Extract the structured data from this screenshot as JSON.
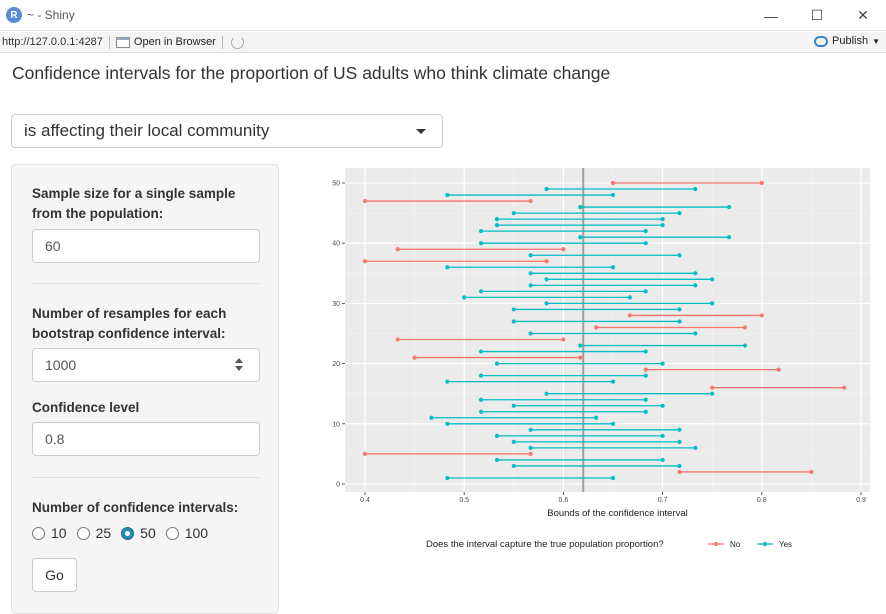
{
  "window": {
    "app_letter": "R",
    "title": "~ - Shiny",
    "controls": [
      "—",
      "☐",
      "✕"
    ]
  },
  "toolbar": {
    "url": "http://127.0.0.1:4287",
    "open_browser": "Open in Browser",
    "publish": "Publish"
  },
  "page": {
    "title": "Confidence intervals for the proportion of US adults who think climate change"
  },
  "statement_select": {
    "value": "is affecting their local community"
  },
  "sidebar": {
    "sample_size_label": "Sample size for a single sample from the population:",
    "sample_size_value": "60",
    "resamples_label": "Number of resamples for each bootstrap confidence interval:",
    "resamples_value": "1000",
    "confidence_label": "Confidence level",
    "confidence_value": "0.8",
    "num_intervals_label": "Number of confidence intervals:",
    "num_intervals_options": [
      "10",
      "25",
      "50",
      "100"
    ],
    "num_intervals_selected": "50",
    "go_label": "Go"
  },
  "chart_data": {
    "type": "interval",
    "xlabel": "Bounds of the confidence interval",
    "ylabel": "",
    "xlim": [
      0.4,
      0.9
    ],
    "ylim": [
      0,
      50
    ],
    "x_ticks": [
      0.4,
      0.5,
      0.6,
      0.7,
      0.8,
      0.9
    ],
    "x_tick_labels": [
      "0.4",
      "0.5",
      "0.6",
      "0.7",
      "0.8",
      "0.9"
    ],
    "y_ticks": [
      0,
      10,
      20,
      30,
      40,
      50
    ],
    "y_tick_labels": [
      "0",
      "10",
      "20",
      "30",
      "40",
      "50"
    ],
    "true_proportion": 0.62,
    "grid": true,
    "legend_title": "Does the interval capture the true population proportion?",
    "legend_position": "bottom",
    "series": [
      {
        "name": "No",
        "color": "#F8766D"
      },
      {
        "name": "Yes",
        "color": "#00BFC4"
      }
    ],
    "intervals": [
      {
        "id": 1,
        "lower": 0.483,
        "upper": 0.65,
        "captured": "Yes"
      },
      {
        "id": 2,
        "lower": 0.717,
        "upper": 0.85,
        "captured": "No"
      },
      {
        "id": 3,
        "lower": 0.55,
        "upper": 0.717,
        "captured": "Yes"
      },
      {
        "id": 4,
        "lower": 0.533,
        "upper": 0.7,
        "captured": "Yes"
      },
      {
        "id": 5,
        "lower": 0.4,
        "upper": 0.567,
        "captured": "No"
      },
      {
        "id": 6,
        "lower": 0.567,
        "upper": 0.733,
        "captured": "Yes"
      },
      {
        "id": 7,
        "lower": 0.55,
        "upper": 0.717,
        "captured": "Yes"
      },
      {
        "id": 8,
        "lower": 0.533,
        "upper": 0.7,
        "captured": "Yes"
      },
      {
        "id": 9,
        "lower": 0.567,
        "upper": 0.717,
        "captured": "Yes"
      },
      {
        "id": 10,
        "lower": 0.483,
        "upper": 0.65,
        "captured": "Yes"
      },
      {
        "id": 11,
        "lower": 0.467,
        "upper": 0.633,
        "captured": "Yes"
      },
      {
        "id": 12,
        "lower": 0.517,
        "upper": 0.683,
        "captured": "Yes"
      },
      {
        "id": 13,
        "lower": 0.55,
        "upper": 0.7,
        "captured": "Yes"
      },
      {
        "id": 14,
        "lower": 0.517,
        "upper": 0.683,
        "captured": "Yes"
      },
      {
        "id": 15,
        "lower": 0.583,
        "upper": 0.75,
        "captured": "Yes"
      },
      {
        "id": 16,
        "lower": 0.75,
        "upper": 0.883,
        "captured": "No"
      },
      {
        "id": 17,
        "lower": 0.483,
        "upper": 0.65,
        "captured": "Yes"
      },
      {
        "id": 18,
        "lower": 0.517,
        "upper": 0.683,
        "captured": "Yes"
      },
      {
        "id": 19,
        "lower": 0.683,
        "upper": 0.817,
        "captured": "No"
      },
      {
        "id": 20,
        "lower": 0.533,
        "upper": 0.7,
        "captured": "Yes"
      },
      {
        "id": 21,
        "lower": 0.45,
        "upper": 0.617,
        "captured": "No"
      },
      {
        "id": 22,
        "lower": 0.517,
        "upper": 0.683,
        "captured": "Yes"
      },
      {
        "id": 23,
        "lower": 0.617,
        "upper": 0.783,
        "captured": "Yes"
      },
      {
        "id": 24,
        "lower": 0.433,
        "upper": 0.6,
        "captured": "No"
      },
      {
        "id": 25,
        "lower": 0.567,
        "upper": 0.733,
        "captured": "Yes"
      },
      {
        "id": 26,
        "lower": 0.633,
        "upper": 0.783,
        "captured": "No"
      },
      {
        "id": 27,
        "lower": 0.55,
        "upper": 0.717,
        "captured": "Yes"
      },
      {
        "id": 28,
        "lower": 0.667,
        "upper": 0.8,
        "captured": "No"
      },
      {
        "id": 29,
        "lower": 0.55,
        "upper": 0.717,
        "captured": "Yes"
      },
      {
        "id": 30,
        "lower": 0.583,
        "upper": 0.75,
        "captured": "Yes"
      },
      {
        "id": 31,
        "lower": 0.5,
        "upper": 0.667,
        "captured": "Yes"
      },
      {
        "id": 32,
        "lower": 0.517,
        "upper": 0.683,
        "captured": "Yes"
      },
      {
        "id": 33,
        "lower": 0.567,
        "upper": 0.733,
        "captured": "Yes"
      },
      {
        "id": 34,
        "lower": 0.583,
        "upper": 0.75,
        "captured": "Yes"
      },
      {
        "id": 35,
        "lower": 0.567,
        "upper": 0.733,
        "captured": "Yes"
      },
      {
        "id": 36,
        "lower": 0.483,
        "upper": 0.65,
        "captured": "Yes"
      },
      {
        "id": 37,
        "lower": 0.4,
        "upper": 0.583,
        "captured": "No"
      },
      {
        "id": 38,
        "lower": 0.567,
        "upper": 0.717,
        "captured": "Yes"
      },
      {
        "id": 39,
        "lower": 0.433,
        "upper": 0.6,
        "captured": "No"
      },
      {
        "id": 40,
        "lower": 0.517,
        "upper": 0.683,
        "captured": "Yes"
      },
      {
        "id": 41,
        "lower": 0.617,
        "upper": 0.767,
        "captured": "Yes"
      },
      {
        "id": 42,
        "lower": 0.517,
        "upper": 0.683,
        "captured": "Yes"
      },
      {
        "id": 43,
        "lower": 0.533,
        "upper": 0.7,
        "captured": "Yes"
      },
      {
        "id": 44,
        "lower": 0.533,
        "upper": 0.7,
        "captured": "Yes"
      },
      {
        "id": 45,
        "lower": 0.55,
        "upper": 0.717,
        "captured": "Yes"
      },
      {
        "id": 46,
        "lower": 0.617,
        "upper": 0.767,
        "captured": "Yes"
      },
      {
        "id": 47,
        "lower": 0.4,
        "upper": 0.567,
        "captured": "No"
      },
      {
        "id": 48,
        "lower": 0.483,
        "upper": 0.65,
        "captured": "Yes"
      },
      {
        "id": 49,
        "lower": 0.583,
        "upper": 0.733,
        "captured": "Yes"
      },
      {
        "id": 50,
        "lower": 0.65,
        "upper": 0.8,
        "captured": "No"
      }
    ]
  }
}
